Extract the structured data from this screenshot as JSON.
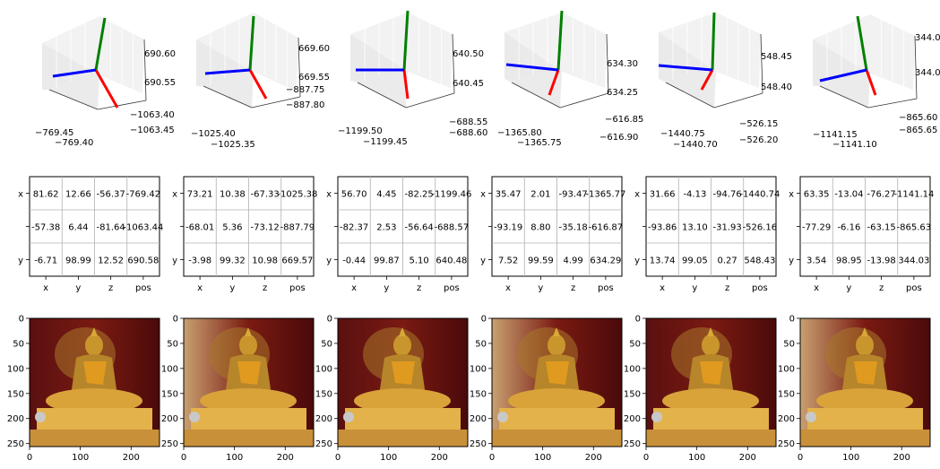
{
  "colors": {
    "axis_x": "#ff0000",
    "axis_y": "#008000",
    "axis_z": "#0000ff",
    "grid": "#b0b0b0",
    "pane": "#f2f2f2"
  },
  "chart_data": [
    {
      "type": "3d-axes",
      "z_ticks": [
        "690.60",
        "690.55"
      ],
      "y_ticks": [
        "−1063.40",
        "−1063.45"
      ],
      "x_ticks": [
        "−769.45",
        "−769.40"
      ],
      "table": {
        "type": "table",
        "columns": [
          "x",
          "y",
          "z",
          "pos"
        ],
        "row_labels": [
          "x",
          "",
          "y"
        ],
        "rows": [
          [
            "81.62",
            "12.66",
            "-56.37",
            "-769.42"
          ],
          [
            "-57.38",
            "6.44",
            "-81.64",
            "-1063.44"
          ],
          [
            "-6.71",
            "98.99",
            "12.52",
            "690.58"
          ]
        ]
      },
      "image": {
        "type": "image",
        "x_ticks": [
          "0",
          "100",
          "200"
        ],
        "y_ticks": [
          "0",
          "50",
          "100",
          "150",
          "200",
          "250"
        ]
      }
    },
    {
      "type": "3d-axes",
      "z_ticks": [
        "669.60",
        "669.55"
      ],
      "y_ticks": [
        "−887.75",
        "−887.80"
      ],
      "x_ticks": [
        "−1025.40",
        "−1025.35"
      ],
      "table": {
        "type": "table",
        "columns": [
          "x",
          "y",
          "z",
          "pos"
        ],
        "row_labels": [
          "x",
          "",
          "y"
        ],
        "rows": [
          [
            "73.21",
            "10.38",
            "-67.33",
            "-1025.38"
          ],
          [
            "-68.01",
            "5.36",
            "-73.12",
            "-887.79"
          ],
          [
            "-3.98",
            "99.32",
            "10.98",
            "669.57"
          ]
        ]
      },
      "image": {
        "type": "image",
        "x_ticks": [
          "0",
          "100",
          "200"
        ],
        "y_ticks": [
          "0",
          "50",
          "100",
          "150",
          "200",
          "250"
        ]
      }
    },
    {
      "type": "3d-axes",
      "z_ticks": [
        "640.50",
        "640.45"
      ],
      "y_ticks": [
        "−688.55",
        "−688.60"
      ],
      "x_ticks": [
        "−1199.50",
        "−1199.45"
      ],
      "table": {
        "type": "table",
        "columns": [
          "x",
          "y",
          "z",
          "pos"
        ],
        "row_labels": [
          "x",
          "",
          "y"
        ],
        "rows": [
          [
            "56.70",
            "4.45",
            "-82.25",
            "-1199.46"
          ],
          [
            "-82.37",
            "2.53",
            "-56.64",
            "-688.57"
          ],
          [
            "-0.44",
            "99.87",
            "5.10",
            "640.48"
          ]
        ]
      },
      "image": {
        "type": "image",
        "x_ticks": [
          "0",
          "100",
          "200"
        ],
        "y_ticks": [
          "0",
          "50",
          "100",
          "150",
          "200",
          "250"
        ]
      }
    },
    {
      "type": "3d-axes",
      "z_ticks": [
        "634.30",
        "634.25"
      ],
      "y_ticks": [
        "−616.85",
        "−616.90"
      ],
      "x_ticks": [
        "−1365.80",
        "−1365.75"
      ],
      "table": {
        "type": "table",
        "columns": [
          "x",
          "y",
          "z",
          "pos"
        ],
        "row_labels": [
          "x",
          "",
          "y"
        ],
        "rows": [
          [
            "35.47",
            "2.01",
            "-93.47",
            "-1365.77"
          ],
          [
            "-93.19",
            "8.80",
            "-35.18",
            "-616.87"
          ],
          [
            "7.52",
            "99.59",
            "4.99",
            "634.29"
          ]
        ]
      },
      "image": {
        "type": "image",
        "x_ticks": [
          "0",
          "100",
          "200"
        ],
        "y_ticks": [
          "0",
          "50",
          "100",
          "150",
          "200",
          "250"
        ]
      }
    },
    {
      "type": "3d-axes",
      "z_ticks": [
        "548.45",
        "548.40"
      ],
      "y_ticks": [
        "−526.15",
        "−526.20"
      ],
      "x_ticks": [
        "−1440.75",
        "−1440.70"
      ],
      "table": {
        "type": "table",
        "columns": [
          "x",
          "y",
          "z",
          "pos"
        ],
        "row_labels": [
          "x",
          "",
          "y"
        ],
        "rows": [
          [
            "31.66",
            "-4.13",
            "-94.76",
            "-1440.74"
          ],
          [
            "-93.86",
            "13.10",
            "-31.93",
            "-526.16"
          ],
          [
            "13.74",
            "99.05",
            "0.27",
            "548.43"
          ]
        ]
      },
      "image": {
        "type": "image",
        "x_ticks": [
          "0",
          "100",
          "200"
        ],
        "y_ticks": [
          "0",
          "50",
          "100",
          "150",
          "200",
          "250"
        ]
      }
    },
    {
      "type": "3d-axes",
      "z_ticks": [
        "344.05",
        "344.00"
      ],
      "y_ticks": [
        "−865.60",
        "−865.65"
      ],
      "x_ticks": [
        "−1141.15",
        "−1141.10"
      ],
      "table": {
        "type": "table",
        "columns": [
          "x",
          "y",
          "z",
          "pos"
        ],
        "row_labels": [
          "x",
          "",
          "y"
        ],
        "rows": [
          [
            "63.35",
            "-13.04",
            "-76.27",
            "-1141.14"
          ],
          [
            "-77.29",
            "-6.16",
            "-63.15",
            "-865.63"
          ],
          [
            "3.54",
            "98.95",
            "-13.98",
            "344.03"
          ]
        ]
      },
      "image": {
        "type": "image",
        "x_ticks": [
          "0",
          "100",
          "200"
        ],
        "y_ticks": [
          "0",
          "50",
          "100",
          "150",
          "200",
          "250"
        ]
      }
    }
  ]
}
